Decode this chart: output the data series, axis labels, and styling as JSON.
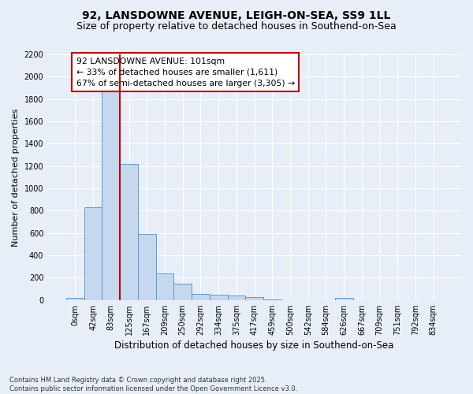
{
  "title1": "92, LANSDOWNE AVENUE, LEIGH-ON-SEA, SS9 1LL",
  "title2": "Size of property relative to detached houses in Southend-on-Sea",
  "xlabel": "Distribution of detached houses by size in Southend-on-Sea",
  "ylabel": "Number of detached properties",
  "bar_labels": [
    "0sqm",
    "42sqm",
    "83sqm",
    "125sqm",
    "167sqm",
    "209sqm",
    "250sqm",
    "292sqm",
    "334sqm",
    "375sqm",
    "417sqm",
    "459sqm",
    "500sqm",
    "542sqm",
    "584sqm",
    "626sqm",
    "667sqm",
    "709sqm",
    "751sqm",
    "792sqm",
    "834sqm"
  ],
  "bar_values": [
    20,
    830,
    1900,
    1220,
    590,
    240,
    150,
    55,
    45,
    40,
    25,
    5,
    0,
    0,
    0,
    20,
    0,
    0,
    0,
    0,
    0
  ],
  "bar_color": "#c5d8ed",
  "bar_edge_color": "#5b9bd5",
  "ylim": [
    0,
    2200
  ],
  "yticks": [
    0,
    200,
    400,
    600,
    800,
    1000,
    1200,
    1400,
    1600,
    1800,
    2000,
    2200
  ],
  "vline_x": 2.5,
  "vline_color": "#bb0000",
  "annotation_box_text": "92 LANSDOWNE AVENUE: 101sqm\n← 33% of detached houses are smaller (1,611)\n67% of semi-detached houses are larger (3,305) →",
  "footer_line1": "Contains HM Land Registry data © Crown copyright and database right 2025.",
  "footer_line2": "Contains public sector information licensed under the Open Government Licence v3.0.",
  "bg_color": "#e8eef7",
  "plot_bg_color": "#e8eef7",
  "title_fontsize": 10,
  "subtitle_fontsize": 9,
  "tick_fontsize": 7,
  "ylabel_fontsize": 8,
  "xlabel_fontsize": 8.5
}
